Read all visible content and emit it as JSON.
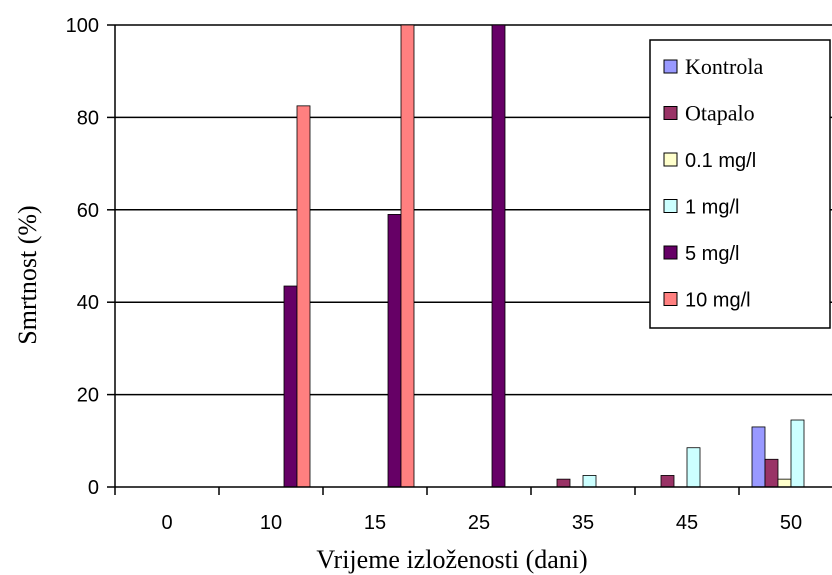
{
  "chart_data": {
    "type": "bar",
    "title": "",
    "xlabel": "Vrijeme izloženosti (dani)",
    "ylabel": "Smrtnost (%)",
    "ylim": [
      0,
      100
    ],
    "yticks": [
      0,
      20,
      40,
      60,
      80,
      100
    ],
    "grid": true,
    "legend_position": "top-right",
    "categories": [
      "0",
      "10",
      "15",
      "25",
      "35",
      "45",
      "50"
    ],
    "series": [
      {
        "name": "Kontrola",
        "color": "#9999ff",
        "values": [
          0,
          0,
          0,
          0,
          0,
          0,
          13
        ]
      },
      {
        "name": "Otapalo",
        "color": "#993366",
        "values": [
          0,
          0,
          0,
          0,
          1.7,
          2.5,
          6
        ]
      },
      {
        "name": "0.1 mg/l",
        "color": "#ffffcc",
        "values": [
          0,
          0,
          0,
          0,
          0,
          0,
          1.7
        ]
      },
      {
        "name": "1 mg/l",
        "color": "#ccffff",
        "values": [
          0,
          0,
          0,
          0,
          2.5,
          8.5,
          14.5
        ]
      },
      {
        "name": "5 mg/l",
        "color": "#660066",
        "values": [
          0,
          43.5,
          59,
          100,
          0,
          0,
          0
        ]
      },
      {
        "name": "10 mg/l",
        "color": "#ff8080",
        "values": [
          0,
          82.5,
          100,
          0,
          0,
          0,
          0
        ]
      }
    ]
  }
}
